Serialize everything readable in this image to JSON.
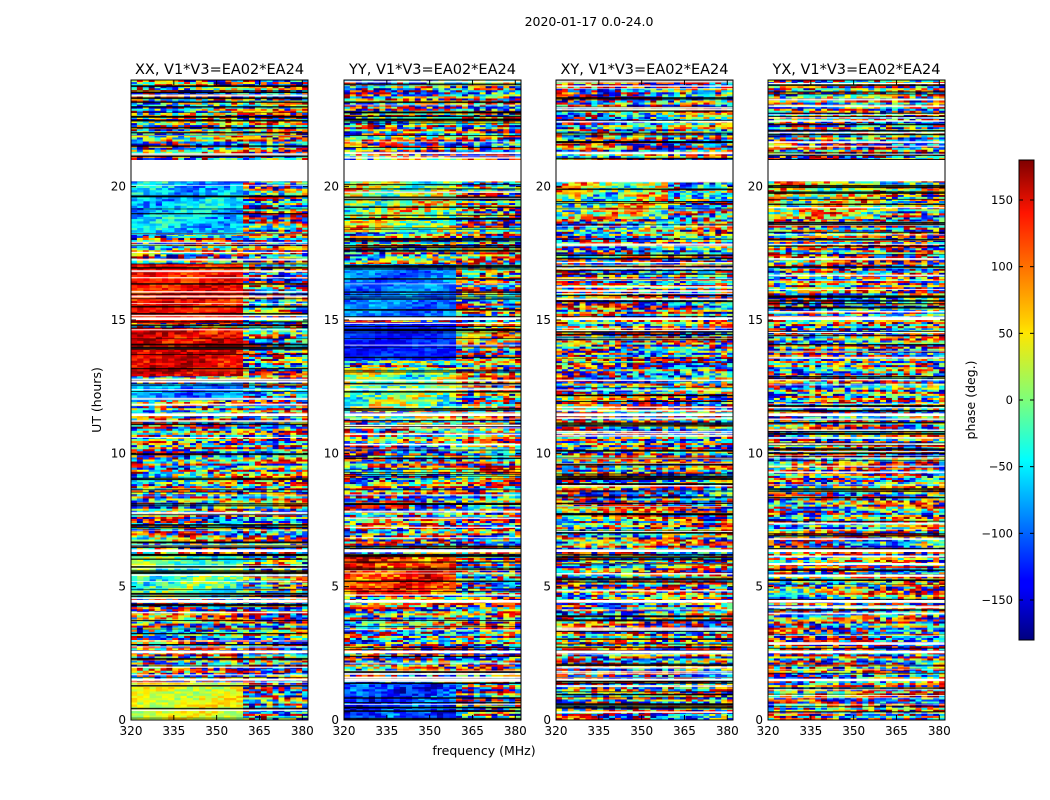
{
  "chart_data": {
    "type": "heatmap",
    "suptitle": "2020-01-17 0.0-24.0",
    "xlabel": "frequency (MHz)",
    "ylabel": "UT (hours)",
    "xlim": [
      320,
      382
    ],
    "ylim": [
      0,
      24
    ],
    "xticks": [
      320,
      335,
      350,
      365,
      380
    ],
    "yticks": [
      0,
      5,
      10,
      15,
      20
    ],
    "panels": [
      {
        "pol": "XX",
        "title": "XX, V1*V3=EA02*EA24"
      },
      {
        "pol": "YY",
        "title": "YY, V1*V3=EA02*EA24"
      },
      {
        "pol": "XY",
        "title": "XY, V1*V3=EA02*EA24"
      },
      {
        "pol": "YX",
        "title": "YX, V1*V3=EA02*EA24"
      }
    ],
    "flagged_gaps_hours": [
      [
        20.2,
        21.0
      ],
      [
        11.4,
        11.5
      ],
      [
        15.0,
        15.1
      ],
      [
        6.3,
        6.4
      ],
      [
        4.4,
        4.5
      ],
      [
        2.5,
        2.6
      ],
      [
        1.5,
        1.55
      ]
    ],
    "colorbar": {
      "label": "phase (deg.)",
      "range": [
        -180,
        180
      ],
      "ticks": [
        150,
        100,
        50,
        0,
        -50,
        -100,
        -150
      ],
      "tick_labels": [
        "150",
        "100",
        "50",
        "0",
        "−50",
        "−100",
        "−150"
      ],
      "colormap": "jet"
    }
  }
}
